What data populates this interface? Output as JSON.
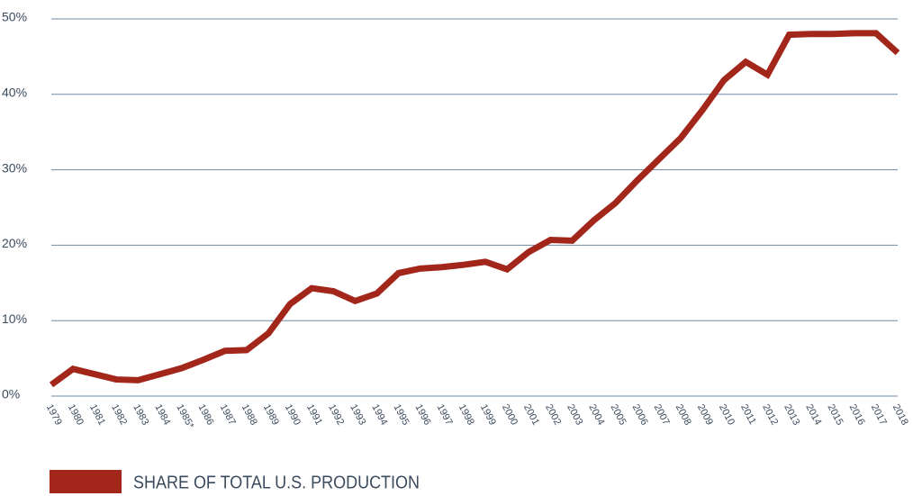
{
  "chart_data": {
    "type": "line",
    "categories": [
      "1979",
      "1980",
      "1981",
      "1982",
      "1983",
      "1984",
      "1985*",
      "1986",
      "1987",
      "1988",
      "1989",
      "1990",
      "1991",
      "1992",
      "1993",
      "1994",
      "1995",
      "1996",
      "1997",
      "1998",
      "1999",
      "2000",
      "2001",
      "2002",
      "2003",
      "2004",
      "2005",
      "2006",
      "2007",
      "2008",
      "2009",
      "2010",
      "2011",
      "2012",
      "2013",
      "2014",
      "2015",
      "2016",
      "2017",
      "2018"
    ],
    "series": [
      {
        "name": "SHARE OF TOTAL U.S. PRODUCTION",
        "color": "#a3261b",
        "values": [
          1.5,
          3.6,
          2.9,
          2.2,
          2.1,
          2.9,
          3.7,
          4.8,
          6.0,
          6.1,
          8.3,
          12.2,
          14.3,
          13.9,
          12.6,
          13.6,
          16.3,
          16.9,
          17.1,
          17.4,
          17.8,
          16.8,
          19.1,
          20.7,
          20.6,
          23.3,
          25.6,
          28.6,
          31.4,
          34.2,
          37.9,
          41.9,
          44.3,
          42.6,
          47.9,
          48.0,
          48.0,
          48.1,
          48.1,
          45.5
        ]
      }
    ],
    "ylim": [
      0,
      50
    ],
    "yticks": [
      {
        "value": 0,
        "label": "0%"
      },
      {
        "value": 10,
        "label": "10%"
      },
      {
        "value": 20,
        "label": "20%"
      },
      {
        "value": 30,
        "label": "30%"
      },
      {
        "value": 40,
        "label": "40%"
      },
      {
        "value": 50,
        "label": "50%"
      }
    ],
    "grid": true,
    "legend": "bottom"
  }
}
